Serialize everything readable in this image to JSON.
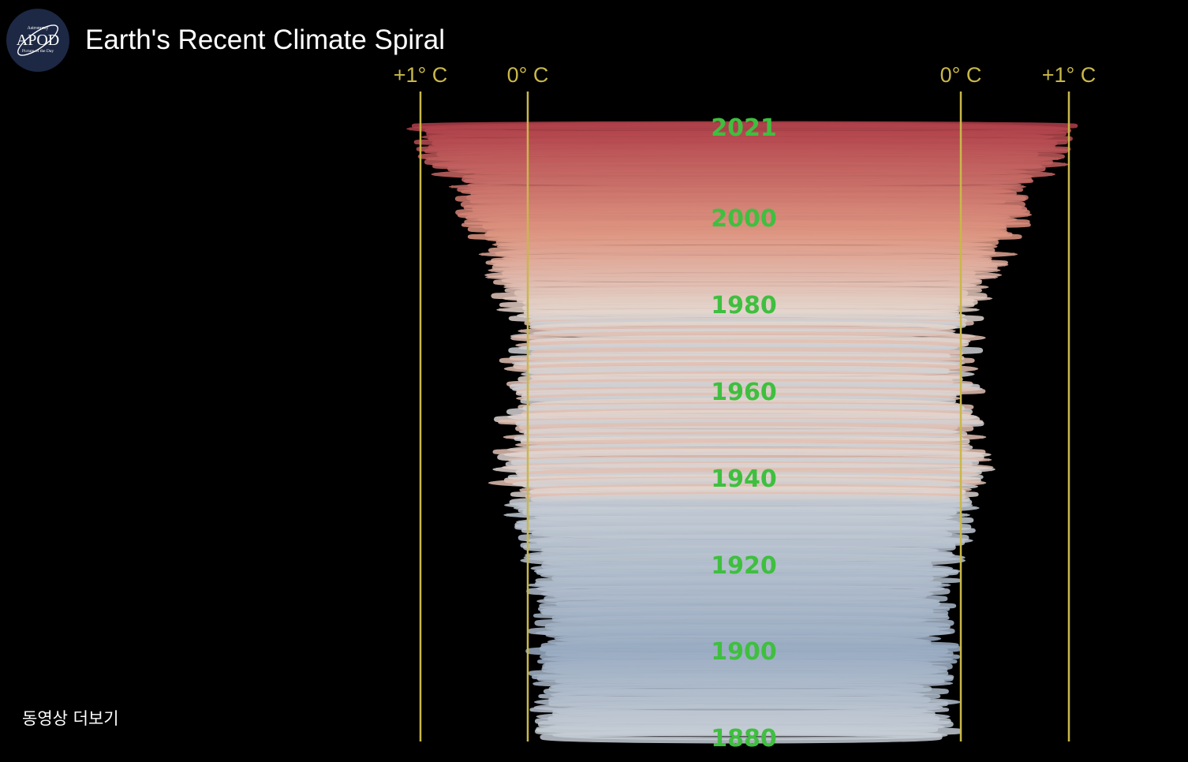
{
  "video": {
    "title": "Earth's Recent Climate Spiral",
    "more_videos_label": "동영상 더보기"
  },
  "channel": {
    "logo_text": "APOD",
    "logo_small_top": "Astronomy",
    "logo_small_bottom": "Picture of the Day"
  },
  "axis_labels": {
    "left_plus_one": "+1° C",
    "left_zero": "0° C",
    "right_zero": "0° C",
    "right_plus_one": "+1° C"
  },
  "year_labels": [
    "2021",
    "2000",
    "1980",
    "1960",
    "1940",
    "1920",
    "1900",
    "1880"
  ],
  "colors": {
    "background": "#000000",
    "axis_gold": "#c9b84a",
    "year_green": "#3fbf3f",
    "warm_red": "#b0404a",
    "neutral": "#e6e1dc",
    "cool_blue": "#98abc2"
  }
}
